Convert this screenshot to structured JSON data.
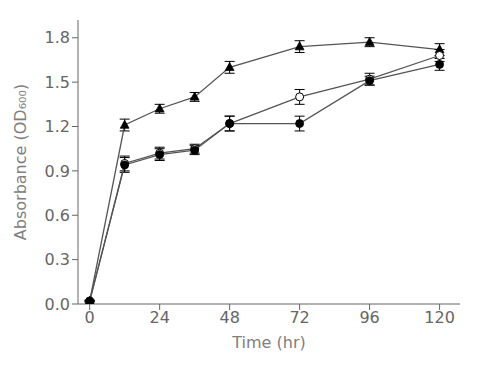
{
  "chart_data": {
    "type": "line",
    "xlabel": "Time (hr)",
    "ylabel": "Absorbance (OD₆₀₀)",
    "x": [
      0,
      12,
      24,
      36,
      48,
      72,
      96,
      120
    ],
    "series": [
      {
        "color": "#555555",
        "marker": "triangle",
        "values": [
          0.02,
          1.21,
          1.32,
          1.4,
          1.6,
          1.74,
          1.77,
          1.72
        ],
        "yerr": [
          0.005,
          0.04,
          0.03,
          0.03,
          0.04,
          0.04,
          0.03,
          0.04
        ]
      },
      {
        "color": "#555555",
        "marker": "open_circle",
        "values": [
          0.02,
          0.95,
          1.02,
          1.05,
          1.22,
          1.4,
          1.52,
          1.68
        ],
        "yerr": [
          0.005,
          0.05,
          0.04,
          0.03,
          0.05,
          0.05,
          0.04,
          0.04
        ]
      },
      {
        "color": "#555555",
        "marker": "circle",
        "values": [
          0.02,
          0.94,
          1.01,
          1.04,
          1.22,
          1.22,
          1.51,
          1.62
        ],
        "yerr": [
          0.005,
          0.05,
          0.04,
          0.03,
          0.05,
          0.05,
          0.03,
          0.04
        ]
      }
    ],
    "xlim": [
      -4,
      127
    ],
    "ylim": [
      0.0,
      1.92
    ],
    "xticks": [
      0,
      24,
      48,
      72,
      96,
      120
    ],
    "yticks": [
      {
        "value": 0.0,
        "label": "0.0"
      },
      0.3,
      0.6,
      0.9,
      1.2,
      1.5,
      1.8
    ],
    "grid": false
  }
}
